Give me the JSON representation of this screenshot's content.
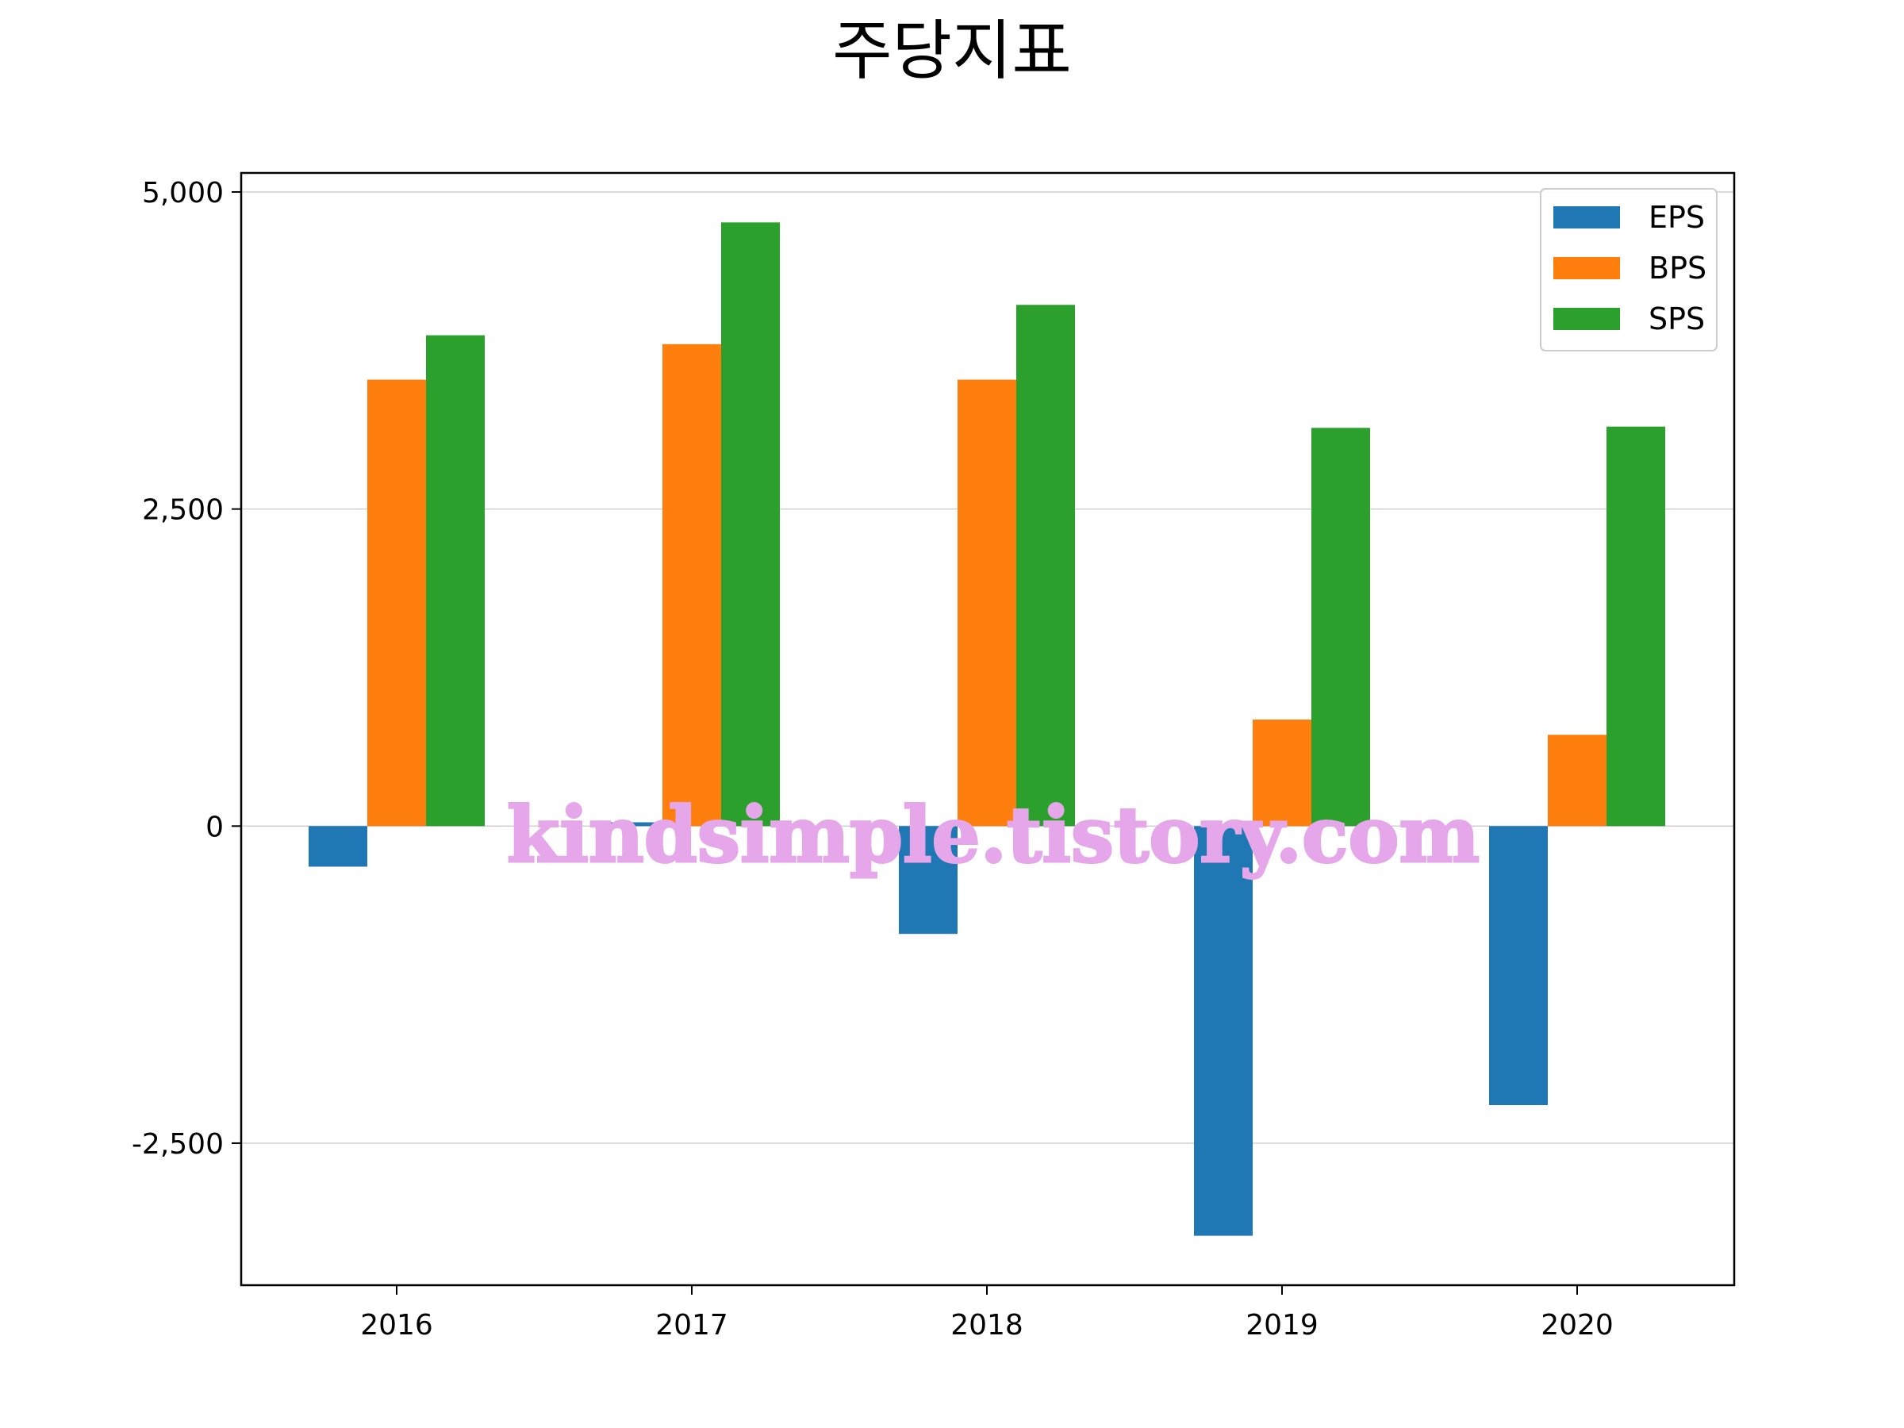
{
  "chart_data": {
    "type": "bar",
    "title": "주당지표",
    "categories": [
      "2016",
      "2017",
      "2018",
      "2019",
      "2020"
    ],
    "series": [
      {
        "name": "EPS",
        "color": "#1f77b4",
        "values": [
          -320,
          30,
          -850,
          -3230,
          -2200
        ]
      },
      {
        "name": "BPS",
        "color": "#ff7f0e",
        "values": [
          3520,
          3800,
          3520,
          840,
          720
        ]
      },
      {
        "name": "SPS",
        "color": "#2ca02c",
        "values": [
          3870,
          4760,
          4110,
          3140,
          3150
        ]
      }
    ],
    "ylim": [
      -3620,
      5150
    ],
    "yticks": [
      -2500,
      0,
      2500,
      5000
    ],
    "ytick_labels": [
      "-2,500",
      "0",
      "2,500",
      "5,000"
    ],
    "xlabel": "",
    "ylabel": "",
    "grid": "y",
    "legend_position": "top-right"
  },
  "watermark": "kindsimple.tistory.com"
}
